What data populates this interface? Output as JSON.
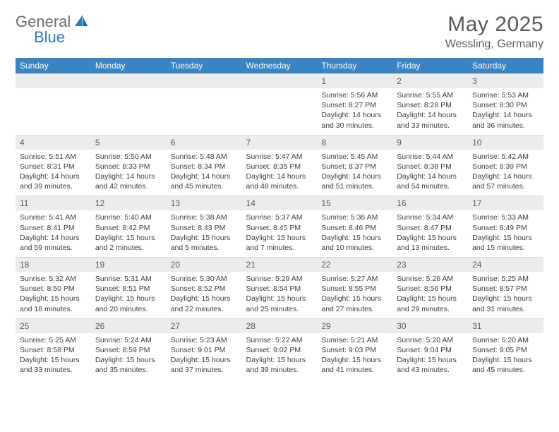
{
  "logo": {
    "part1": "General",
    "part2": "Blue"
  },
  "title": "May 2025",
  "location": "Wessling, Germany",
  "colors": {
    "header_bg": "#3b84c4",
    "header_text": "#ffffff",
    "daynum_bg": "#ececec",
    "text": "#3d3d3d",
    "rule": "#3b6fa8",
    "logo_gray": "#6b6b6b",
    "logo_blue": "#2d7bc3"
  },
  "weekdays": [
    "Sunday",
    "Monday",
    "Tuesday",
    "Wednesday",
    "Thursday",
    "Friday",
    "Saturday"
  ],
  "weeks": [
    [
      null,
      null,
      null,
      null,
      {
        "n": "1",
        "sr": "5:56 AM",
        "ss": "8:27 PM",
        "dl": "14 hours and 30 minutes."
      },
      {
        "n": "2",
        "sr": "5:55 AM",
        "ss": "8:28 PM",
        "dl": "14 hours and 33 minutes."
      },
      {
        "n": "3",
        "sr": "5:53 AM",
        "ss": "8:30 PM",
        "dl": "14 hours and 36 minutes."
      }
    ],
    [
      {
        "n": "4",
        "sr": "5:51 AM",
        "ss": "8:31 PM",
        "dl": "14 hours and 39 minutes."
      },
      {
        "n": "5",
        "sr": "5:50 AM",
        "ss": "8:33 PM",
        "dl": "14 hours and 42 minutes."
      },
      {
        "n": "6",
        "sr": "5:48 AM",
        "ss": "8:34 PM",
        "dl": "14 hours and 45 minutes."
      },
      {
        "n": "7",
        "sr": "5:47 AM",
        "ss": "8:35 PM",
        "dl": "14 hours and 48 minutes."
      },
      {
        "n": "8",
        "sr": "5:45 AM",
        "ss": "8:37 PM",
        "dl": "14 hours and 51 minutes."
      },
      {
        "n": "9",
        "sr": "5:44 AM",
        "ss": "8:38 PM",
        "dl": "14 hours and 54 minutes."
      },
      {
        "n": "10",
        "sr": "5:42 AM",
        "ss": "8:39 PM",
        "dl": "14 hours and 57 minutes."
      }
    ],
    [
      {
        "n": "11",
        "sr": "5:41 AM",
        "ss": "8:41 PM",
        "dl": "14 hours and 59 minutes."
      },
      {
        "n": "12",
        "sr": "5:40 AM",
        "ss": "8:42 PM",
        "dl": "15 hours and 2 minutes."
      },
      {
        "n": "13",
        "sr": "5:38 AM",
        "ss": "8:43 PM",
        "dl": "15 hours and 5 minutes."
      },
      {
        "n": "14",
        "sr": "5:37 AM",
        "ss": "8:45 PM",
        "dl": "15 hours and 7 minutes."
      },
      {
        "n": "15",
        "sr": "5:36 AM",
        "ss": "8:46 PM",
        "dl": "15 hours and 10 minutes."
      },
      {
        "n": "16",
        "sr": "5:34 AM",
        "ss": "8:47 PM",
        "dl": "15 hours and 13 minutes."
      },
      {
        "n": "17",
        "sr": "5:33 AM",
        "ss": "8:49 PM",
        "dl": "15 hours and 15 minutes."
      }
    ],
    [
      {
        "n": "18",
        "sr": "5:32 AM",
        "ss": "8:50 PM",
        "dl": "15 hours and 18 minutes."
      },
      {
        "n": "19",
        "sr": "5:31 AM",
        "ss": "8:51 PM",
        "dl": "15 hours and 20 minutes."
      },
      {
        "n": "20",
        "sr": "5:30 AM",
        "ss": "8:52 PM",
        "dl": "15 hours and 22 minutes."
      },
      {
        "n": "21",
        "sr": "5:29 AM",
        "ss": "8:54 PM",
        "dl": "15 hours and 25 minutes."
      },
      {
        "n": "22",
        "sr": "5:27 AM",
        "ss": "8:55 PM",
        "dl": "15 hours and 27 minutes."
      },
      {
        "n": "23",
        "sr": "5:26 AM",
        "ss": "8:56 PM",
        "dl": "15 hours and 29 minutes."
      },
      {
        "n": "24",
        "sr": "5:25 AM",
        "ss": "8:57 PM",
        "dl": "15 hours and 31 minutes."
      }
    ],
    [
      {
        "n": "25",
        "sr": "5:25 AM",
        "ss": "8:58 PM",
        "dl": "15 hours and 33 minutes."
      },
      {
        "n": "26",
        "sr": "5:24 AM",
        "ss": "8:59 PM",
        "dl": "15 hours and 35 minutes."
      },
      {
        "n": "27",
        "sr": "5:23 AM",
        "ss": "9:01 PM",
        "dl": "15 hours and 37 minutes."
      },
      {
        "n": "28",
        "sr": "5:22 AM",
        "ss": "9:02 PM",
        "dl": "15 hours and 39 minutes."
      },
      {
        "n": "29",
        "sr": "5:21 AM",
        "ss": "9:03 PM",
        "dl": "15 hours and 41 minutes."
      },
      {
        "n": "30",
        "sr": "5:20 AM",
        "ss": "9:04 PM",
        "dl": "15 hours and 43 minutes."
      },
      {
        "n": "31",
        "sr": "5:20 AM",
        "ss": "9:05 PM",
        "dl": "15 hours and 45 minutes."
      }
    ]
  ],
  "labels": {
    "sunrise": "Sunrise:",
    "sunset": "Sunset:",
    "daylight": "Daylight:"
  }
}
